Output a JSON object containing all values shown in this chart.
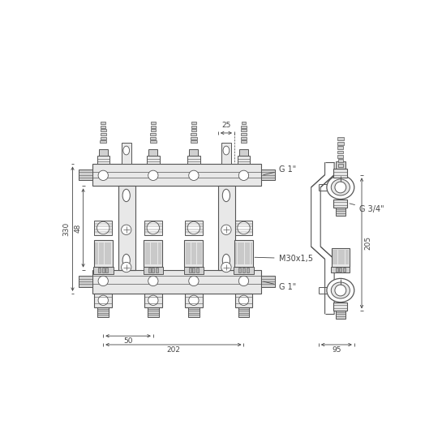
{
  "bg_color": "#ffffff",
  "line_color": "#555555",
  "dim_color": "#444444",
  "fill_light": "#e8e8e8",
  "fill_mid": "#d0d0d0",
  "fill_dark": "#b0b0b0",
  "fill_white": "#ffffff",
  "fig_width": 5.45,
  "fig_height": 5.45,
  "dpi": 100,
  "dim_25_text": "25",
  "dim_48_text": "48",
  "dim_330_text": "330",
  "dim_50_text": "50",
  "dim_202_text": "202",
  "dim_95_text": "95",
  "dim_205_text": "205",
  "label_g1_top": "G 1\"",
  "label_g1_bot": "G 1\"",
  "label_g34": "G 3/4\"",
  "label_m30": "M30x1,5"
}
